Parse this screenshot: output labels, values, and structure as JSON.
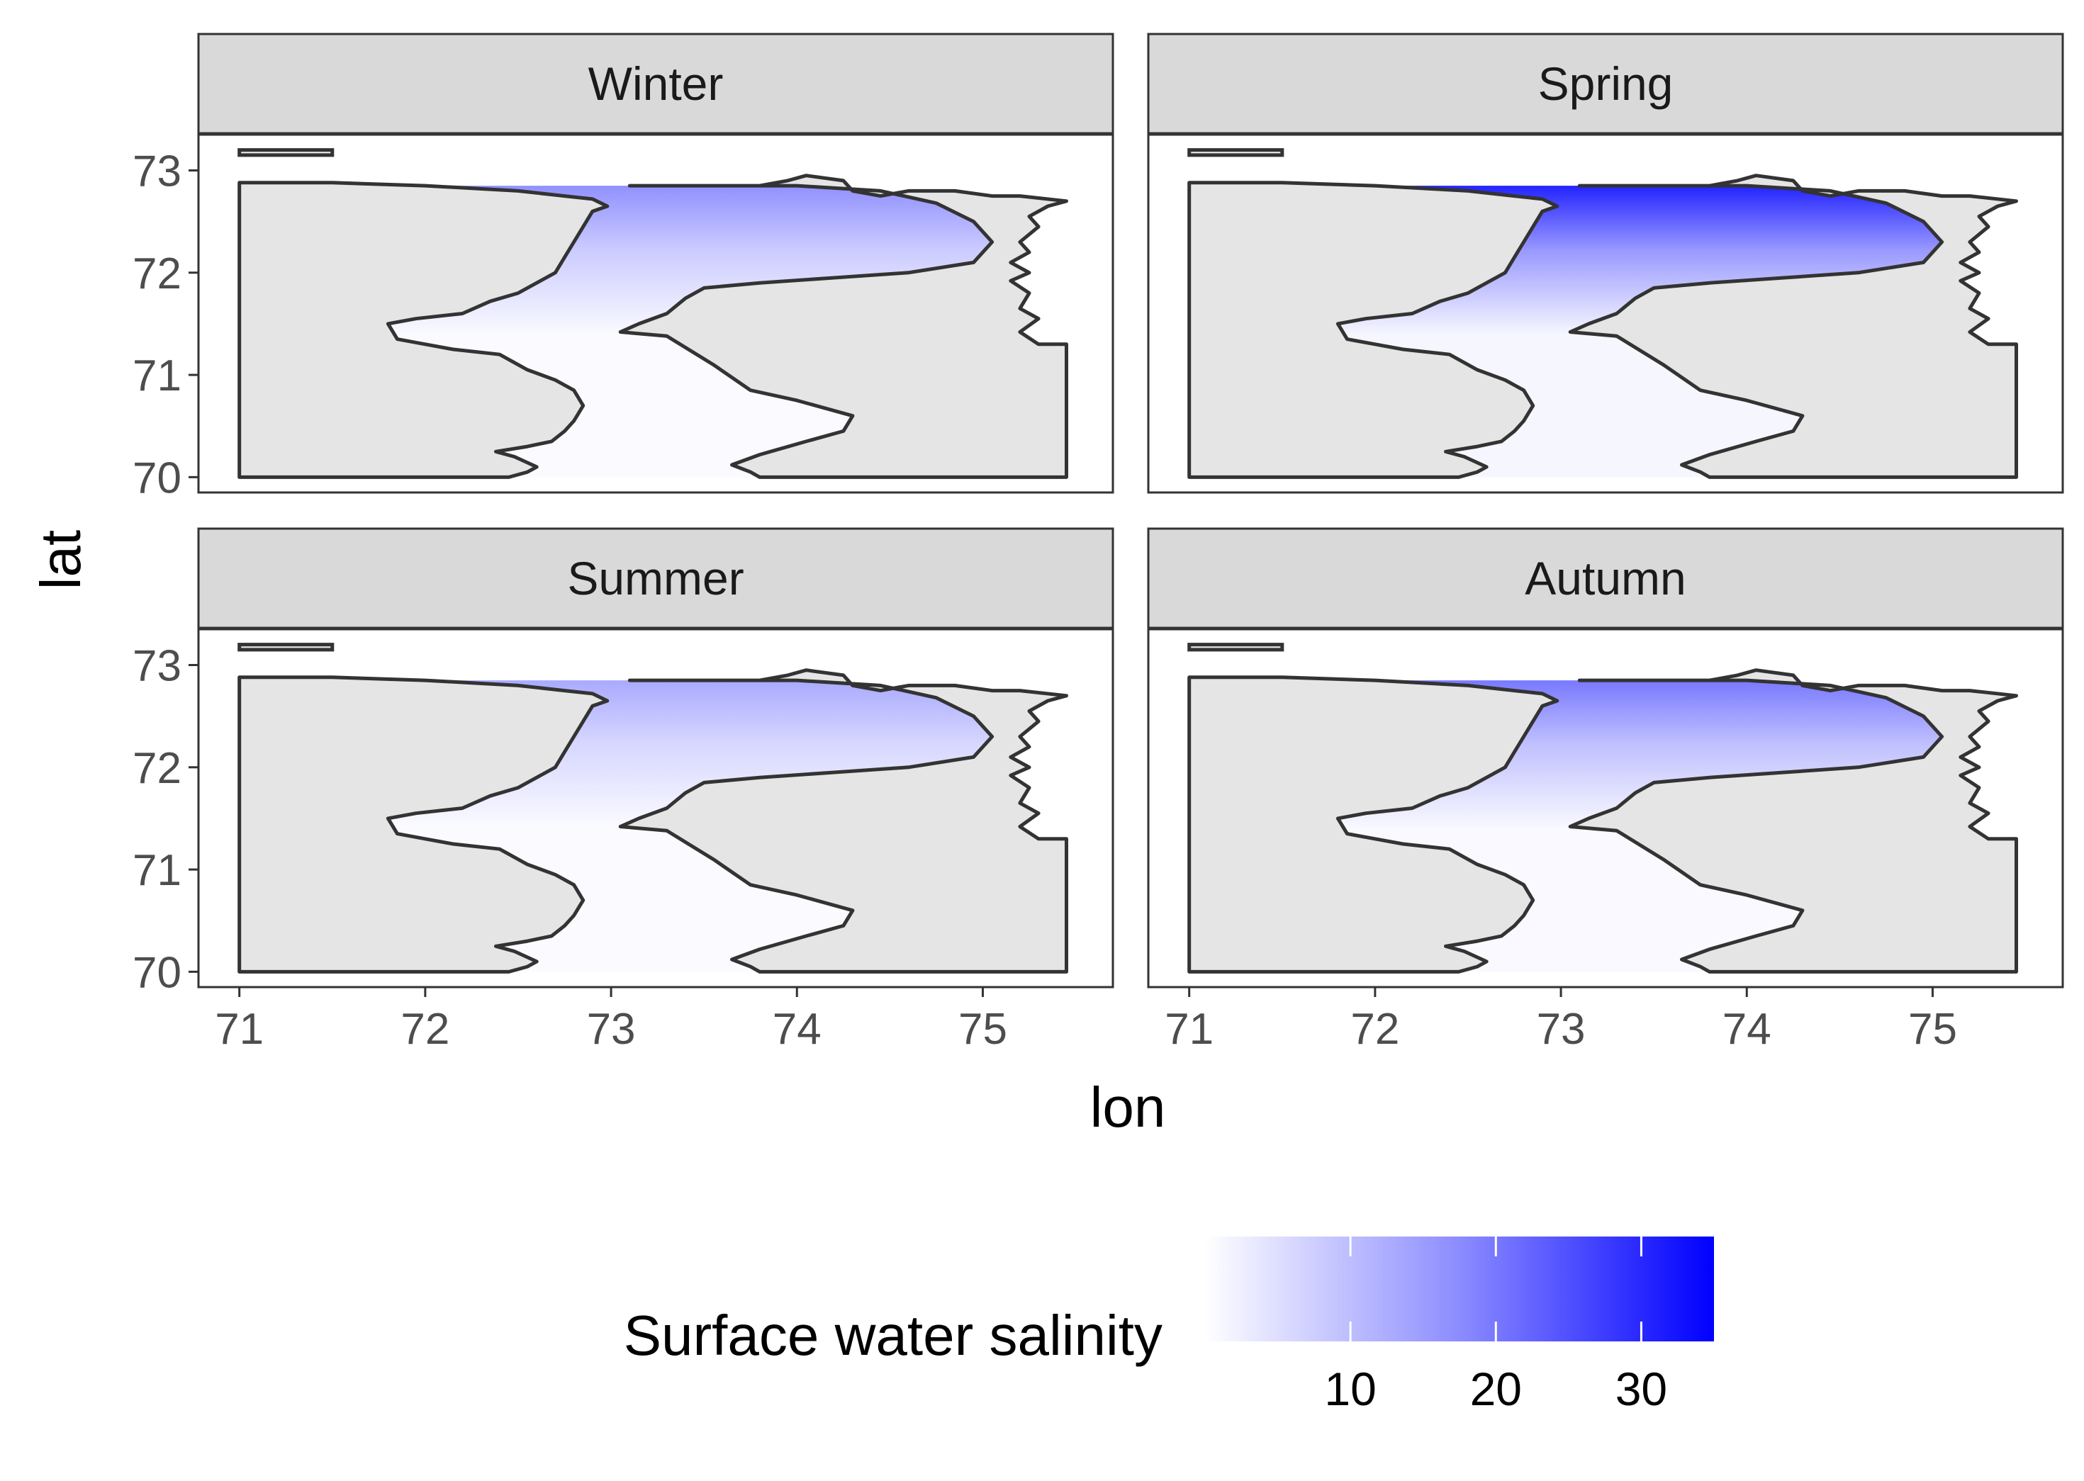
{
  "chart_data": {
    "type": "heatmap",
    "xlabel": "lon",
    "ylabel": "lat",
    "x_ticks": [
      71,
      72,
      73,
      74,
      75
    ],
    "y_ticks": [
      70,
      71,
      72,
      73
    ],
    "xlim": [
      70.78,
      75.7
    ],
    "ylim": [
      69.85,
      73.35
    ],
    "panels": [
      {
        "name": "Winter",
        "intensity": 0.45
      },
      {
        "name": "Spring",
        "intensity": 0.9
      },
      {
        "name": "Summer",
        "intensity": 0.35
      },
      {
        "name": "Autumn",
        "intensity": 0.55
      }
    ],
    "legend": {
      "title": "Surface water salinity",
      "ticks": [
        10,
        20,
        30
      ],
      "range": [
        0,
        35
      ],
      "placement": "bottom",
      "low_color": "#ffffff",
      "high_color": "#0000ff"
    },
    "colors": {
      "land": "#e5e5e5",
      "coastline": "#333333",
      "strip_fill": "#d9d9d9",
      "water_low": "#ffffff",
      "water_high": "#0000ff"
    }
  }
}
